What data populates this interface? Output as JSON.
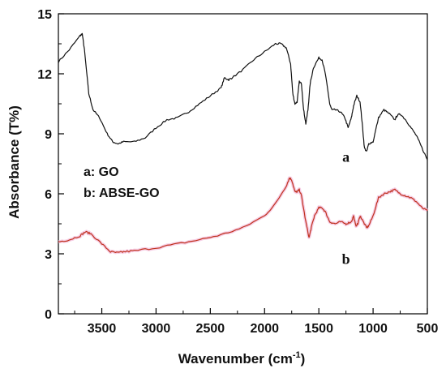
{
  "chart_data": {
    "type": "line",
    "title": "",
    "xlabel": "Wavenumber (cm",
    "xlabel_sup": "-1",
    "xlabel_end": ")",
    "ylabel": "Absorbance (T%)",
    "xlim": [
      3900,
      500
    ],
    "ylim": [
      0,
      15
    ],
    "x_reversed": true,
    "x_ticks": [
      3500,
      3000,
      2500,
      2000,
      1500,
      1000,
      500
    ],
    "y_ticks": [
      0,
      3,
      6,
      9,
      12,
      15
    ],
    "grid": false,
    "legend_lines": [
      "a: GO",
      "b: ABSE-GO"
    ],
    "series": [
      {
        "name": "a",
        "color": "#111111",
        "x": [
          3900,
          3800,
          3700,
          3680,
          3660,
          3620,
          3580,
          3520,
          3450,
          3400,
          3350,
          3300,
          3200,
          3100,
          3000,
          2900,
          2800,
          2700,
          2600,
          2500,
          2400,
          2370,
          2330,
          2300,
          2200,
          2100,
          2000,
          1900,
          1850,
          1800,
          1760,
          1740,
          1720,
          1700,
          1680,
          1660,
          1640,
          1620,
          1600,
          1580,
          1550,
          1500,
          1470,
          1440,
          1400,
          1380,
          1350,
          1300,
          1260,
          1230,
          1200,
          1180,
          1150,
          1120,
          1100,
          1080,
          1060,
          1040,
          1000,
          950,
          900,
          850,
          800,
          780,
          750,
          700,
          650,
          600,
          550,
          500
        ],
        "y": [
          12.6,
          13.2,
          13.9,
          14.0,
          13.2,
          11.0,
          10.2,
          9.8,
          9.0,
          8.6,
          8.5,
          8.6,
          8.6,
          8.8,
          9.3,
          9.7,
          9.8,
          10.1,
          10.5,
          10.9,
          11.3,
          11.8,
          11.7,
          11.8,
          12.2,
          12.7,
          13.1,
          13.5,
          13.5,
          13.3,
          12.5,
          11.0,
          10.5,
          10.6,
          11.6,
          11.5,
          10.2,
          9.5,
          10.2,
          11.5,
          12.3,
          12.8,
          12.7,
          12.0,
          10.5,
          10.2,
          10.2,
          10.1,
          9.8,
          9.3,
          9.8,
          10.4,
          10.9,
          10.6,
          9.5,
          8.3,
          8.1,
          8.5,
          8.6,
          9.8,
          10.2,
          10.0,
          9.7,
          9.9,
          10.0,
          9.7,
          9.3,
          8.9,
          8.3,
          7.7
        ]
      },
      {
        "name": "b",
        "color": "#c0321e",
        "x": [
          3900,
          3800,
          3700,
          3650,
          3600,
          3500,
          3420,
          3350,
          3300,
          3200,
          3000,
          2800,
          2600,
          2400,
          2200,
          2000,
          1900,
          1800,
          1770,
          1750,
          1720,
          1700,
          1680,
          1660,
          1620,
          1590,
          1570,
          1540,
          1500,
          1470,
          1440,
          1400,
          1350,
          1300,
          1250,
          1200,
          1180,
          1160,
          1140,
          1120,
          1100,
          1060,
          1040,
          1000,
          950,
          900,
          850,
          800,
          750,
          700,
          650,
          600,
          550,
          500
        ],
        "y": [
          3.6,
          3.7,
          3.9,
          4.1,
          4.0,
          3.5,
          3.1,
          3.05,
          3.1,
          3.15,
          3.3,
          3.5,
          3.7,
          3.95,
          4.3,
          4.9,
          5.5,
          6.4,
          6.8,
          6.7,
          6.1,
          6.1,
          6.2,
          5.9,
          4.6,
          3.8,
          4.3,
          4.9,
          5.3,
          5.3,
          5.1,
          4.6,
          4.5,
          4.6,
          4.5,
          4.6,
          4.9,
          4.4,
          4.5,
          4.9,
          4.7,
          4.3,
          4.4,
          4.9,
          5.8,
          6.0,
          6.1,
          6.2,
          6.0,
          5.9,
          5.8,
          5.6,
          5.3,
          5.15
        ]
      }
    ],
    "annotations": [
      {
        "text": "a",
        "x": 1250,
        "y": 7.6
      },
      {
        "text": "b",
        "x": 1250,
        "y": 2.5
      }
    ]
  }
}
